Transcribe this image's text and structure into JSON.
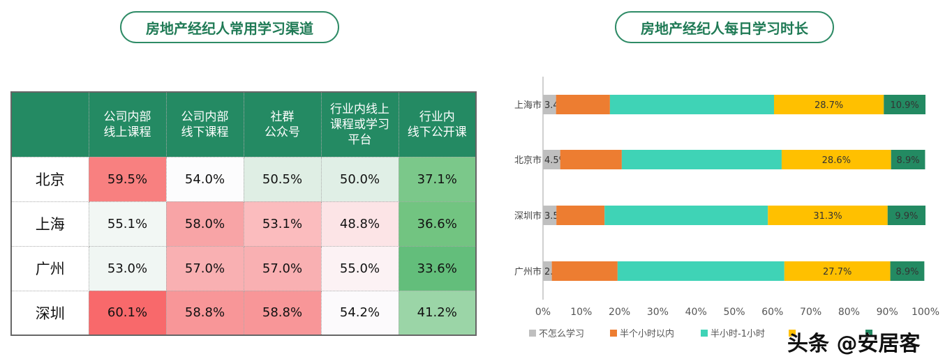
{
  "left": {
    "title": "房地产经纪人常用学习渠道",
    "headers": [
      "公司内部\n线上课程",
      "公司内部\n线下课程",
      "社群\n公众号",
      "行业内线上\n课程或学习\n平台",
      "行业内\n线下公开课"
    ],
    "rows": [
      {
        "city": "北京",
        "values": [
          "59.5%",
          "54.0%",
          "50.5%",
          "50.0%",
          "37.1%"
        ],
        "colors": [
          "#f88080",
          "#fcfcfd",
          "#dfeee4",
          "#e0efe6",
          "#7bc88a"
        ]
      },
      {
        "city": "上海",
        "values": [
          "55.1%",
          "58.0%",
          "53.1%",
          "48.8%",
          "36.6%"
        ],
        "colors": [
          "#f2f7f4",
          "#f8a4a6",
          "#fbbcbe",
          "#fce4e6",
          "#72c481"
        ]
      },
      {
        "city": "广州",
        "values": [
          "53.0%",
          "57.0%",
          "57.0%",
          "55.0%",
          "33.6%"
        ],
        "colors": [
          "#f0f6f3",
          "#f9b0b2",
          "#f9b0b2",
          "#fcf2f4",
          "#63be7b"
        ]
      },
      {
        "city": "深圳",
        "values": [
          "60.1%",
          "58.8%",
          "58.8%",
          "54.2%",
          "41.2%"
        ],
        "colors": [
          "#f8696b",
          "#f89698",
          "#f89698",
          "#fcfafc",
          "#9bd5a7"
        ]
      }
    ]
  },
  "chart_data": {
    "type": "bar",
    "orientation": "horizontal",
    "stacked": true,
    "title": "房地产经纪人每日学习时长",
    "categories": [
      "上海市",
      "北京市",
      "深圳市",
      "广州市"
    ],
    "xlim": [
      0,
      100
    ],
    "xticks": [
      "0%",
      "10%",
      "20%",
      "30%",
      "40%",
      "50%",
      "60%",
      "70%",
      "80%",
      "90%",
      "100%"
    ],
    "legend": "bottom",
    "series": [
      {
        "name": "不怎么学习",
        "color": "#bfbfbf",
        "values": [
          3.4,
          4.5,
          3.5,
          2.3
        ],
        "labels": [
          "3.4%",
          "4.5%",
          "3.5%",
          "2.3%"
        ]
      },
      {
        "name": "半个小时以内",
        "color": "#ed7d31",
        "values": [
          14.1,
          16.1,
          12.6,
          17.2
        ]
      },
      {
        "name": "半小时-1小时",
        "color": "#3fd3b6",
        "values": [
          42.9,
          41.8,
          42.7,
          43.6
        ]
      },
      {
        "color": "#ffc000",
        "values": [
          28.7,
          28.6,
          31.3,
          27.7
        ],
        "labels": [
          "28.7%",
          "28.6%",
          "31.3%",
          "27.7%"
        ]
      },
      {
        "color": "#238a62",
        "values": [
          10.9,
          8.9,
          9.9,
          8.9
        ],
        "labels": [
          "10.9%",
          "8.9%",
          "9.9%",
          "8.9%"
        ]
      }
    ]
  },
  "watermark": "头条 @安居客"
}
